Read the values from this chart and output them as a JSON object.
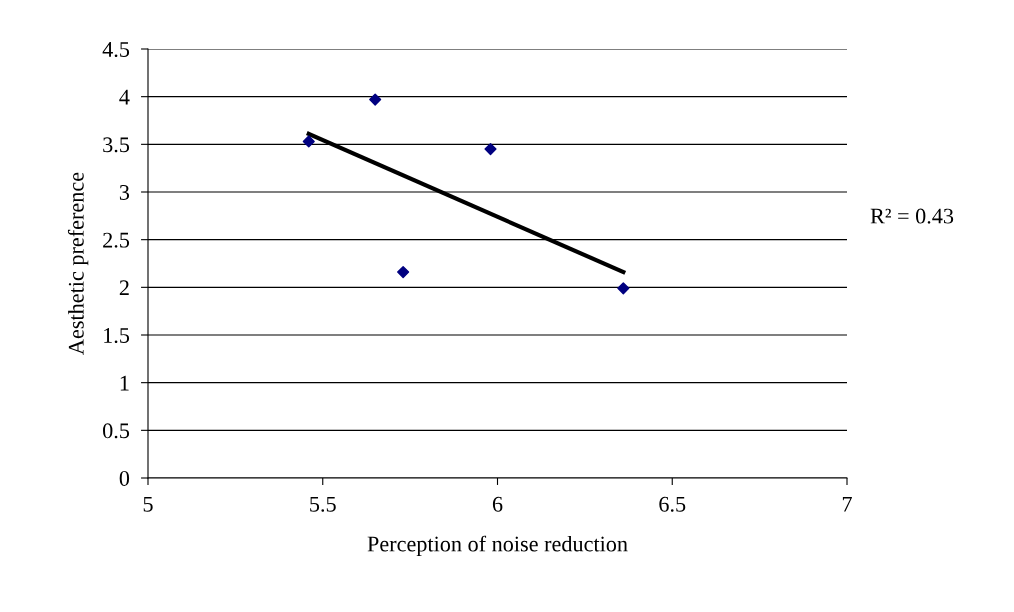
{
  "chart_data": {
    "type": "scatter",
    "xlabel": "Perception of noise reduction",
    "ylabel": "Aesthetic preference",
    "series": [
      {
        "color": "#000080",
        "marker": "diamond",
        "x": [
          5.46,
          5.65,
          5.73,
          5.98,
          6.36
        ],
        "values": [
          3.53,
          3.97,
          2.16,
          3.45,
          1.99
        ]
      },
      {
        "type": "line",
        "color": "#000000",
        "marker": "none",
        "x": [
          5.46,
          6.36
        ],
        "values": [
          3.61,
          2.16
        ]
      }
    ],
    "xlim": [
      5,
      7
    ],
    "xticks": [
      5,
      5.5,
      6,
      6.5,
      7
    ],
    "ylim": [
      0,
      4.5
    ],
    "yticks": [
      0,
      0.5,
      1,
      1.5,
      2,
      2.5,
      3,
      3.5,
      4,
      4.5
    ],
    "grid": "y",
    "legend": false,
    "annotations": [
      "R² = 0.43"
    ]
  }
}
